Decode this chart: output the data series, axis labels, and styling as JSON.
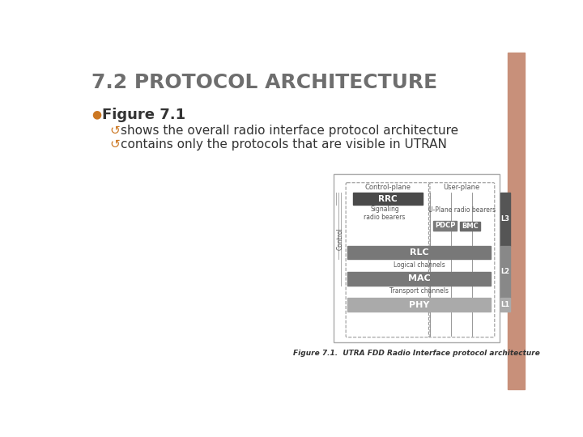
{
  "title": "7.2 PROTOCOL ARCHITECTURE",
  "title_color": "#6e6e6e",
  "title_fontsize": 18,
  "background_color": "#ffffff",
  "right_bar_color": "#c8907a",
  "bullet_color": "#cc7722",
  "figure_7_label": "Figure 7.1",
  "bullet1": "shows the overall radio interface protocol architecture",
  "bullet2": "contains only the protocols that are visible in UTRAN",
  "diagram": {
    "control_plane_label": "Control-plane",
    "user_plane_label": "User-plane",
    "control_label": "Control",
    "rrc_label": "RRC",
    "rrc_color": "#4a4a4a",
    "signaling_label": "Signaling\nradio bearers",
    "u_plane_label": "U-Plane radio bearers",
    "pdcp_label": "PDCP",
    "pdcp_color": "#7a7a7a",
    "bmc_label": "BMC",
    "bmc_color": "#6a6a6a",
    "rlc_label": "RLC",
    "rlc_color": "#787878",
    "logical_channels_label": "Logical channels",
    "mac_label": "MAC",
    "mac_color": "#787878",
    "transport_channels_label": "Transport channels",
    "phy_label": "PHY",
    "phy_color": "#aaaaaa",
    "l3_label": "L3",
    "l2_label": "L2",
    "l1_label": "L1",
    "l3_color": "#555555",
    "l2_color": "#888888",
    "l1_color": "#aaaaaa",
    "figure_caption": "Figure 7.1.  UTRA FDD Radio Interface protocol architecture",
    "outer_border": "#aaaaaa",
    "dashed_border": "#999999",
    "line_color": "#888888"
  }
}
